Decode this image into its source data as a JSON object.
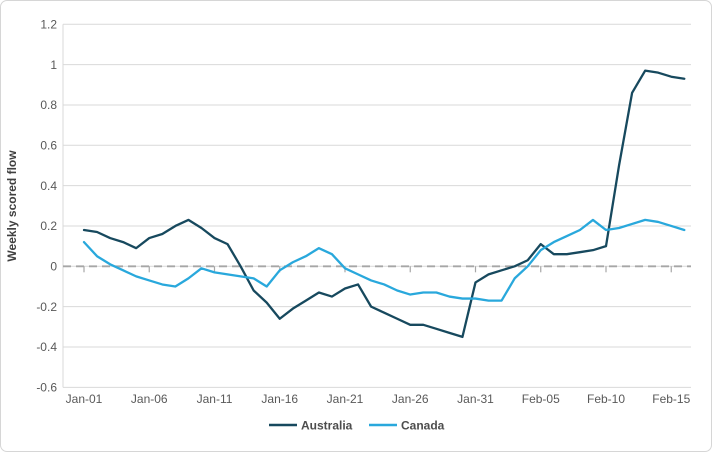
{
  "chart_data": {
    "type": "line",
    "title": "",
    "ylabel": "Weekly scored flow",
    "xlabel": "",
    "ylim": [
      -0.6,
      1.2
    ],
    "grid": {
      "on": true,
      "color": "#d9d9d9"
    },
    "zero_line": {
      "style": "dashed",
      "color": "#a6a6a6"
    },
    "legend_position": "bottom",
    "yticks": [
      {
        "v": 1.2,
        "label": "1.2"
      },
      {
        "v": 1.0,
        "label": "1"
      },
      {
        "v": 0.8,
        "label": "0.8"
      },
      {
        "v": 0.6,
        "label": "0.6"
      },
      {
        "v": 0.4,
        "label": "0.4"
      },
      {
        "v": 0.2,
        "label": "0.2"
      },
      {
        "v": 0.0,
        "label": "0"
      },
      {
        "v": -0.2,
        "label": "-0.2"
      },
      {
        "v": -0.4,
        "label": "-0.4"
      },
      {
        "v": -0.6,
        "label": "-0.6"
      }
    ],
    "xticks": [
      {
        "i": 0,
        "label": "Jan-01"
      },
      {
        "i": 5,
        "label": "Jan-06"
      },
      {
        "i": 10,
        "label": "Jan-11"
      },
      {
        "i": 15,
        "label": "Jan-16"
      },
      {
        "i": 20,
        "label": "Jan-21"
      },
      {
        "i": 25,
        "label": "Jan-26"
      },
      {
        "i": 30,
        "label": "Jan-31"
      },
      {
        "i": 35,
        "label": "Feb-05"
      },
      {
        "i": 40,
        "label": "Feb-10"
      },
      {
        "i": 45,
        "label": "Feb-15"
      }
    ],
    "x": [
      "Jan-01",
      "Jan-02",
      "Jan-03",
      "Jan-04",
      "Jan-05",
      "Jan-06",
      "Jan-07",
      "Jan-08",
      "Jan-09",
      "Jan-10",
      "Jan-11",
      "Jan-12",
      "Jan-13",
      "Jan-14",
      "Jan-15",
      "Jan-16",
      "Jan-17",
      "Jan-18",
      "Jan-19",
      "Jan-20",
      "Jan-21",
      "Jan-22",
      "Jan-23",
      "Jan-24",
      "Jan-25",
      "Jan-26",
      "Jan-27",
      "Jan-28",
      "Jan-29",
      "Jan-30",
      "Jan-31",
      "Feb-01",
      "Feb-02",
      "Feb-03",
      "Feb-04",
      "Feb-05",
      "Feb-06",
      "Feb-07",
      "Feb-08",
      "Feb-09",
      "Feb-10",
      "Feb-11",
      "Feb-12",
      "Feb-13",
      "Feb-14",
      "Feb-15",
      "Feb-16"
    ],
    "series": [
      {
        "name": "Australia",
        "color": "#17495e",
        "values": [
          0.18,
          0.17,
          0.14,
          0.12,
          0.09,
          0.14,
          0.16,
          0.2,
          0.23,
          0.19,
          0.14,
          0.11,
          0.0,
          -0.12,
          -0.18,
          -0.26,
          -0.21,
          -0.17,
          -0.13,
          -0.15,
          -0.11,
          -0.09,
          -0.2,
          -0.23,
          -0.26,
          -0.29,
          -0.29,
          -0.31,
          -0.33,
          -0.35,
          -0.08,
          -0.04,
          -0.02,
          0.0,
          0.03,
          0.11,
          0.06,
          0.06,
          0.07,
          0.08,
          0.1,
          0.5,
          0.86,
          0.97,
          0.96,
          0.94,
          0.93
        ]
      },
      {
        "name": "Canada",
        "color": "#29a8dc",
        "values": [
          0.12,
          0.05,
          0.01,
          -0.02,
          -0.05,
          -0.07,
          -0.09,
          -0.1,
          -0.06,
          -0.01,
          -0.03,
          -0.04,
          -0.05,
          -0.06,
          -0.1,
          -0.02,
          0.02,
          0.05,
          0.09,
          0.06,
          -0.01,
          -0.04,
          -0.07,
          -0.09,
          -0.12,
          -0.14,
          -0.13,
          -0.13,
          -0.15,
          -0.16,
          -0.16,
          -0.17,
          -0.17,
          -0.06,
          0.0,
          0.08,
          0.12,
          0.15,
          0.18,
          0.23,
          0.18,
          0.19,
          0.21,
          0.23,
          0.22,
          0.2,
          0.18
        ]
      }
    ]
  }
}
